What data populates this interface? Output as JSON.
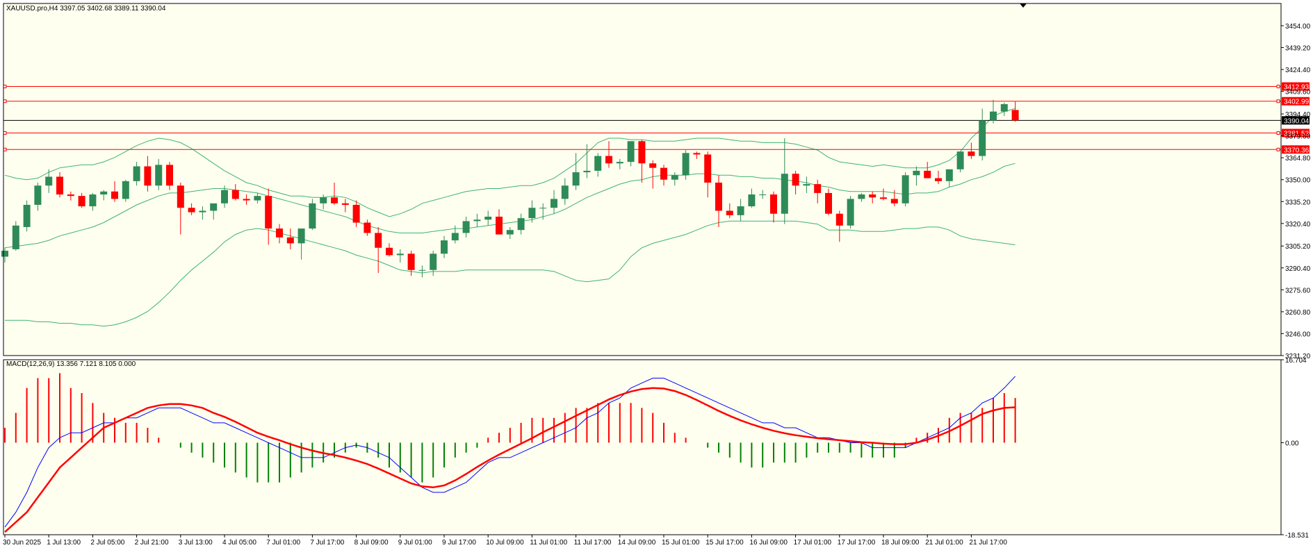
{
  "window": {
    "symbol_info": "XAUUSD.pro,H4  3397.05 3402.68 3389.11 3390.04",
    "macd_info": "MACD(12,26,9) 13.356 7.121 8.105 0.000"
  },
  "colors": {
    "background": "#fffff0",
    "frame": "#000000",
    "bull": "#2e8b57",
    "bear": "#ff0000",
    "bands": "#3cb371",
    "hline": "#ff0000",
    "bid": "#000000",
    "macd_line": "#0000ff",
    "signal_line": "#ff0000",
    "hist_pos": "#ff0000",
    "hist_neg": "#008000"
  },
  "chart_data": [
    {
      "type": "candlestick",
      "name": "price",
      "ylim": [
        3231.2,
        3469.0
      ],
      "y_ticks": [
        "3454.00",
        "3439.20",
        "3424.40",
        "3409.60",
        "3394.40",
        "3379.60",
        "3364.80",
        "3350.00",
        "3335.20",
        "3320.40",
        "3305.20",
        "3290.40",
        "3275.60",
        "3260.80",
        "3246.00",
        "3231.20"
      ],
      "x_tick_labels": [
        {
          "bar": 0,
          "label": "30 Jun 2025"
        },
        {
          "bar": 4,
          "label": "1 Jul 13:00"
        },
        {
          "bar": 8,
          "label": "2 Jul 05:00"
        },
        {
          "bar": 12,
          "label": "2 Jul 21:00"
        },
        {
          "bar": 16,
          "label": "3 Jul 13:00"
        },
        {
          "bar": 20,
          "label": "4 Jul 05:00"
        },
        {
          "bar": 24,
          "label": "7 Jul 01:00"
        },
        {
          "bar": 28,
          "label": "7 Jul 17:00"
        },
        {
          "bar": 32,
          "label": "8 Jul 09:00"
        },
        {
          "bar": 36,
          "label": "9 Jul 01:00"
        },
        {
          "bar": 40,
          "label": "9 Jul 17:00"
        },
        {
          "bar": 44,
          "label": "10 Jul 09:00"
        },
        {
          "bar": 48,
          "label": "11 Jul 01:00"
        },
        {
          "bar": 52,
          "label": "11 Jul 17:00"
        },
        {
          "bar": 56,
          "label": "14 Jul 09:00"
        },
        {
          "bar": 60,
          "label": "15 Jul 01:00"
        },
        {
          "bar": 64,
          "label": "15 Jul 17:00"
        },
        {
          "bar": 68,
          "label": "16 Jul 09:00"
        },
        {
          "bar": 72,
          "label": "17 Jul 01:00"
        },
        {
          "bar": 76,
          "label": "17 Jul 17:00"
        },
        {
          "bar": 80,
          "label": "18 Jul 09:00"
        },
        {
          "bar": 84,
          "label": "21 Jul 01:00"
        },
        {
          "bar": 88,
          "label": "21 Jul 17:00"
        }
      ],
      "candles": [
        [
          3298,
          3304,
          3294,
          3302
        ],
        [
          3303,
          3322,
          3302,
          3319
        ],
        [
          3318,
          3336,
          3315,
          3333
        ],
        [
          3333,
          3348,
          3329,
          3346
        ],
        [
          3346,
          3357,
          3341,
          3352
        ],
        [
          3352,
          3355,
          3338,
          3340
        ],
        [
          3340,
          3342,
          3336,
          3339
        ],
        [
          3339,
          3341,
          3331,
          3332
        ],
        [
          3332,
          3341,
          3329,
          3340
        ],
        [
          3340,
          3343,
          3336,
          3342
        ],
        [
          3342,
          3349,
          3335,
          3337
        ],
        [
          3337,
          3350,
          3335,
          3349
        ],
        [
          3349,
          3362,
          3346,
          3359
        ],
        [
          3359,
          3366,
          3342,
          3346
        ],
        [
          3346,
          3364,
          3343,
          3360
        ],
        [
          3360,
          3362,
          3343,
          3346
        ],
        [
          3346,
          3348,
          3313,
          3331
        ],
        [
          3331,
          3334,
          3326,
          3328
        ],
        [
          3328,
          3332,
          3323,
          3329
        ],
        [
          3329,
          3333,
          3323,
          3334
        ],
        [
          3334,
          3346,
          3331,
          3343
        ],
        [
          3343,
          3347,
          3336,
          3337
        ],
        [
          3337,
          3340,
          3333,
          3336
        ],
        [
          3336,
          3341,
          3334,
          3339
        ],
        [
          3339,
          3344,
          3306,
          3317
        ],
        [
          3317,
          3320,
          3307,
          3311
        ],
        [
          3311,
          3317,
          3303,
          3307
        ],
        [
          3307,
          3315,
          3296,
          3317
        ],
        [
          3317,
          3337,
          3316,
          3334
        ],
        [
          3334,
          3340,
          3330,
          3338
        ],
        [
          3338,
          3348,
          3333,
          3334
        ],
        [
          3334,
          3337,
          3328,
          3333
        ],
        [
          3333,
          3336,
          3318,
          3321
        ],
        [
          3321,
          3323,
          3312,
          3314
        ],
        [
          3314,
          3318,
          3287,
          3304
        ],
        [
          3304,
          3307,
          3298,
          3299
        ],
        [
          3299,
          3303,
          3294,
          3300
        ],
        [
          3300,
          3302,
          3285,
          3289
        ],
        [
          3289,
          3292,
          3284,
          3289
        ],
        [
          3289,
          3302,
          3285,
          3300
        ],
        [
          3300,
          3312,
          3297,
          3309
        ],
        [
          3309,
          3319,
          3307,
          3314
        ],
        [
          3314,
          3325,
          3311,
          3322
        ],
        [
          3322,
          3327,
          3318,
          3323
        ],
        [
          3323,
          3329,
          3319,
          3325
        ],
        [
          3325,
          3330,
          3313,
          3313
        ],
        [
          3313,
          3318,
          3310,
          3316
        ],
        [
          3316,
          3327,
          3313,
          3324
        ],
        [
          3324,
          3336,
          3321,
          3331
        ],
        [
          3331,
          3334,
          3323,
          3331
        ],
        [
          3331,
          3343,
          3327,
          3337
        ],
        [
          3337,
          3351,
          3333,
          3346
        ],
        [
          3346,
          3368,
          3343,
          3355
        ],
        [
          3355,
          3374,
          3351,
          3356
        ],
        [
          3356,
          3368,
          3352,
          3366
        ],
        [
          3366,
          3376,
          3358,
          3361
        ],
        [
          3361,
          3364,
          3357,
          3362
        ],
        [
          3362,
          3375,
          3359,
          3376
        ],
        [
          3376,
          3377,
          3348,
          3361
        ],
        [
          3361,
          3363,
          3344,
          3358
        ],
        [
          3358,
          3360,
          3346,
          3350
        ],
        [
          3350,
          3355,
          3346,
          3353
        ],
        [
          3353,
          3370,
          3350,
          3368
        ],
        [
          3368,
          3369,
          3364,
          3367
        ],
        [
          3367,
          3369,
          3338,
          3348
        ],
        [
          3348,
          3353,
          3318,
          3329
        ],
        [
          3329,
          3334,
          3324,
          3326
        ],
        [
          3326,
          3337,
          3322,
          3332
        ],
        [
          3332,
          3344,
          3331,
          3340
        ],
        [
          3340,
          3343,
          3337,
          3340
        ],
        [
          3340,
          3342,
          3321,
          3327
        ],
        [
          3327,
          3378,
          3320,
          3354
        ],
        [
          3354,
          3356,
          3340,
          3346
        ],
        [
          3346,
          3352,
          3341,
          3347
        ],
        [
          3347,
          3350,
          3334,
          3341
        ],
        [
          3341,
          3344,
          3326,
          3327
        ],
        [
          3327,
          3329,
          3308,
          3319
        ],
        [
          3319,
          3339,
          3317,
          3337
        ],
        [
          3337,
          3341,
          3335,
          3340
        ],
        [
          3340,
          3342,
          3334,
          3338
        ],
        [
          3338,
          3344,
          3336,
          3337
        ],
        [
          3337,
          3343,
          3332,
          3334
        ],
        [
          3334,
          3355,
          3332,
          3353
        ],
        [
          3353,
          3359,
          3346,
          3356
        ],
        [
          3356,
          3362,
          3351,
          3351
        ],
        [
          3351,
          3356,
          3347,
          3349
        ],
        [
          3349,
          3356,
          3345,
          3357
        ],
        [
          3357,
          3369,
          3355,
          3369
        ],
        [
          3369,
          3375,
          3364,
          3366
        ],
        [
          3366,
          3398,
          3363,
          3390
        ],
        [
          3390,
          3404,
          3388,
          3396
        ],
        [
          3396,
          3402,
          3393,
          3401
        ],
        [
          3397.05,
          3402.68,
          3389.11,
          3390.04
        ]
      ],
      "bands": {
        "upper": [
          3353,
          3351,
          3350,
          3351,
          3355,
          3358,
          3359,
          3360,
          3360,
          3362,
          3365,
          3369,
          3373,
          3376,
          3378,
          3377,
          3375,
          3371,
          3366,
          3361,
          3356,
          3352,
          3348,
          3346,
          3343,
          3341,
          3339,
          3339,
          3338,
          3338,
          3339,
          3338,
          3335,
          3331,
          3328,
          3325,
          3327,
          3330,
          3334,
          3336,
          3338,
          3340,
          3342,
          3343,
          3344,
          3344,
          3345,
          3346,
          3346,
          3348,
          3351,
          3356,
          3361,
          3368,
          3375,
          3378,
          3378,
          3377,
          3377,
          3376,
          3376,
          3376,
          3377,
          3378,
          3378,
          3378,
          3377,
          3376,
          3376,
          3375,
          3375,
          3375,
          3374,
          3372,
          3370,
          3365,
          3362,
          3361,
          3360,
          3359,
          3360,
          3359,
          3358,
          3358,
          3358,
          3360,
          3363,
          3369,
          3378,
          3385,
          3393,
          3396,
          3398
        ],
        "middle": [
          3304,
          3305,
          3306,
          3307,
          3309,
          3312,
          3314,
          3316,
          3318,
          3321,
          3325,
          3329,
          3333,
          3336,
          3339,
          3341,
          3341,
          3342,
          3343,
          3344,
          3344,
          3343,
          3342,
          3341,
          3339,
          3337,
          3335,
          3333,
          3331,
          3329,
          3327,
          3325,
          3322,
          3319,
          3317,
          3315,
          3314,
          3314,
          3314,
          3315,
          3316,
          3317,
          3317,
          3318,
          3319,
          3320,
          3321,
          3322,
          3323,
          3325,
          3327,
          3330,
          3334,
          3338,
          3341,
          3344,
          3347,
          3349,
          3350,
          3352,
          3353,
          3353,
          3353,
          3354,
          3354,
          3353,
          3353,
          3352,
          3352,
          3351,
          3351,
          3350,
          3349,
          3348,
          3346,
          3345,
          3343,
          3342,
          3342,
          3342,
          3342,
          3341,
          3340,
          3341,
          3341,
          3342,
          3345,
          3347,
          3350,
          3352,
          3355,
          3359,
          3361
        ],
        "lower": [
          3255,
          3255,
          3255,
          3254,
          3254,
          3253,
          3253,
          3252,
          3252,
          3251,
          3252,
          3254,
          3257,
          3261,
          3267,
          3274,
          3282,
          3289,
          3295,
          3301,
          3308,
          3313,
          3316,
          3317,
          3316,
          3314,
          3312,
          3310,
          3308,
          3306,
          3304,
          3302,
          3299,
          3297,
          3295,
          3292,
          3289,
          3288,
          3287,
          3288,
          3288,
          3288,
          3289,
          3289,
          3289,
          3289,
          3289,
          3289,
          3289,
          3289,
          3288,
          3285,
          3282,
          3281,
          3282,
          3283,
          3289,
          3298,
          3304,
          3307,
          3309,
          3311,
          3313,
          3316,
          3319,
          3321,
          3322,
          3322,
          3322,
          3322,
          3322,
          3322,
          3322,
          3321,
          3320,
          3316,
          3316,
          3316,
          3315,
          3315,
          3315,
          3316,
          3317,
          3317,
          3318,
          3318,
          3316,
          3312,
          3310,
          3309,
          3308,
          3307,
          3306
        ]
      },
      "hlines": [
        {
          "value": 3412.93,
          "label": "3412.93"
        },
        {
          "value": 3402.99,
          "label": "3402.99"
        },
        {
          "value": 3381.53,
          "label": "3381.53"
        },
        {
          "value": 3370.36,
          "label": "3370.36"
        }
      ],
      "bid_line": {
        "value": 3390.04,
        "label": "3390.04"
      }
    },
    {
      "type": "macd",
      "name": "MACD(12,26,9)",
      "ylim": [
        -18.531,
        16.704
      ],
      "y_ticks": [
        "16.704",
        "0.00",
        "-18.531"
      ],
      "histogram": [
        3,
        6,
        11,
        13,
        13,
        14,
        11,
        10,
        8,
        6,
        5,
        4,
        4,
        3,
        1,
        0,
        -1,
        -2,
        -3,
        -4,
        -5,
        -6,
        -7,
        -8,
        -8,
        -8,
        -7,
        -6,
        -5,
        -4,
        -3,
        -2,
        -1,
        -2,
        -3,
        -5,
        -6,
        -7,
        -8,
        -7,
        -5,
        -3,
        -2,
        -1,
        1,
        2,
        3,
        4,
        5,
        5,
        5,
        6,
        7,
        7,
        8,
        8,
        8,
        8,
        7,
        6,
        4,
        2,
        1,
        0,
        -1,
        -2,
        -3,
        -4,
        -5,
        -5,
        -4,
        -4,
        -4,
        -3,
        -2,
        -2,
        -2,
        -2,
        -3,
        -3,
        -3,
        -3,
        -1,
        1,
        2,
        3,
        5,
        6,
        6,
        7,
        9,
        10,
        9
      ],
      "macd": [
        -17,
        -14,
        -10,
        -5,
        -1,
        1,
        2,
        2,
        3,
        4,
        4,
        5,
        5,
        6,
        7,
        7,
        7,
        6,
        5,
        4,
        4,
        3,
        2,
        1,
        0,
        -1,
        -2,
        -3,
        -3,
        -3,
        -2,
        -1,
        -0.5,
        -1,
        -2,
        -3,
        -5,
        -7,
        -9,
        -10,
        -10,
        -9,
        -8,
        -6,
        -4,
        -3,
        -3,
        -2,
        -1,
        0,
        1,
        2,
        3,
        5,
        6,
        8,
        9,
        11,
        12,
        13,
        13,
        12,
        11,
        10,
        9,
        8,
        7,
        6,
        5,
        4,
        4,
        3,
        3,
        2,
        1,
        1,
        0.5,
        0,
        0,
        -1,
        -1,
        -1,
        -1,
        0,
        1,
        2,
        3,
        5,
        6,
        8,
        9,
        11,
        13.356
      ],
      "signal": [
        -18,
        -16,
        -14,
        -11,
        -8,
        -5,
        -3,
        -1,
        1,
        3,
        4,
        5,
        6,
        7,
        7.5,
        7.8,
        7.8,
        7.5,
        7,
        6,
        5.2,
        4.2,
        3.1,
        2,
        1.2,
        0.5,
        -0.3,
        -1,
        -1.6,
        -2.1,
        -2.5,
        -3,
        -3.6,
        -4.3,
        -5.2,
        -6.2,
        -7.2,
        -8.2,
        -8.8,
        -9,
        -8.6,
        -7.6,
        -6.3,
        -4.9,
        -3.6,
        -2.4,
        -1.3,
        -0.2,
        0.9,
        2.1,
        3.2,
        4.3,
        5.4,
        6.5,
        7.6,
        8.7,
        9.6,
        10.3,
        10.8,
        11,
        10.9,
        10.4,
        9.6,
        8.6,
        7.5,
        6.4,
        5.4,
        4.5,
        3.7,
        3,
        2.4,
        1.9,
        1.5,
        1.2,
        0.9,
        0.7,
        0.5,
        0.3,
        0.1,
        0,
        -0.2,
        -0.3,
        -0.3,
        0,
        0.6,
        1.4,
        2.3,
        3.4,
        4.6,
        5.8,
        6.5,
        7,
        7.121
      ]
    }
  ]
}
